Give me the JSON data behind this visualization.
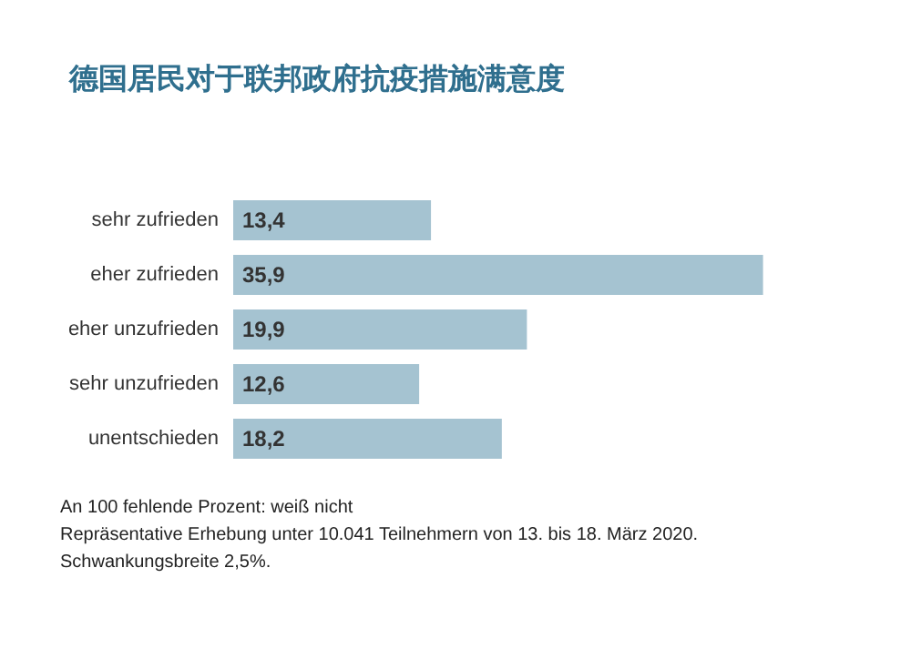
{
  "chart_data": {
    "type": "bar",
    "orientation": "horizontal",
    "title": "德国居民对于联邦政府抗疫措施满意度",
    "categories": [
      "sehr zufrieden",
      "eher zufrieden",
      "eher unzufrieden",
      "sehr unzufrieden",
      "unentschieden"
    ],
    "values": [
      13.4,
      35.9,
      19.9,
      12.6,
      18.2
    ],
    "value_labels": [
      "13,4",
      "35,9",
      "19,9",
      "12,6",
      "18,2"
    ],
    "color": "#a5c3d1",
    "annotations": [
      "An 100 fehlende Prozent: weiß nicht",
      "Repräsentative Erhebung unter 10.041 Teilnehmern von 13. bis 18. März 2020.",
      "Schwankungsbreite 2,5%."
    ]
  }
}
